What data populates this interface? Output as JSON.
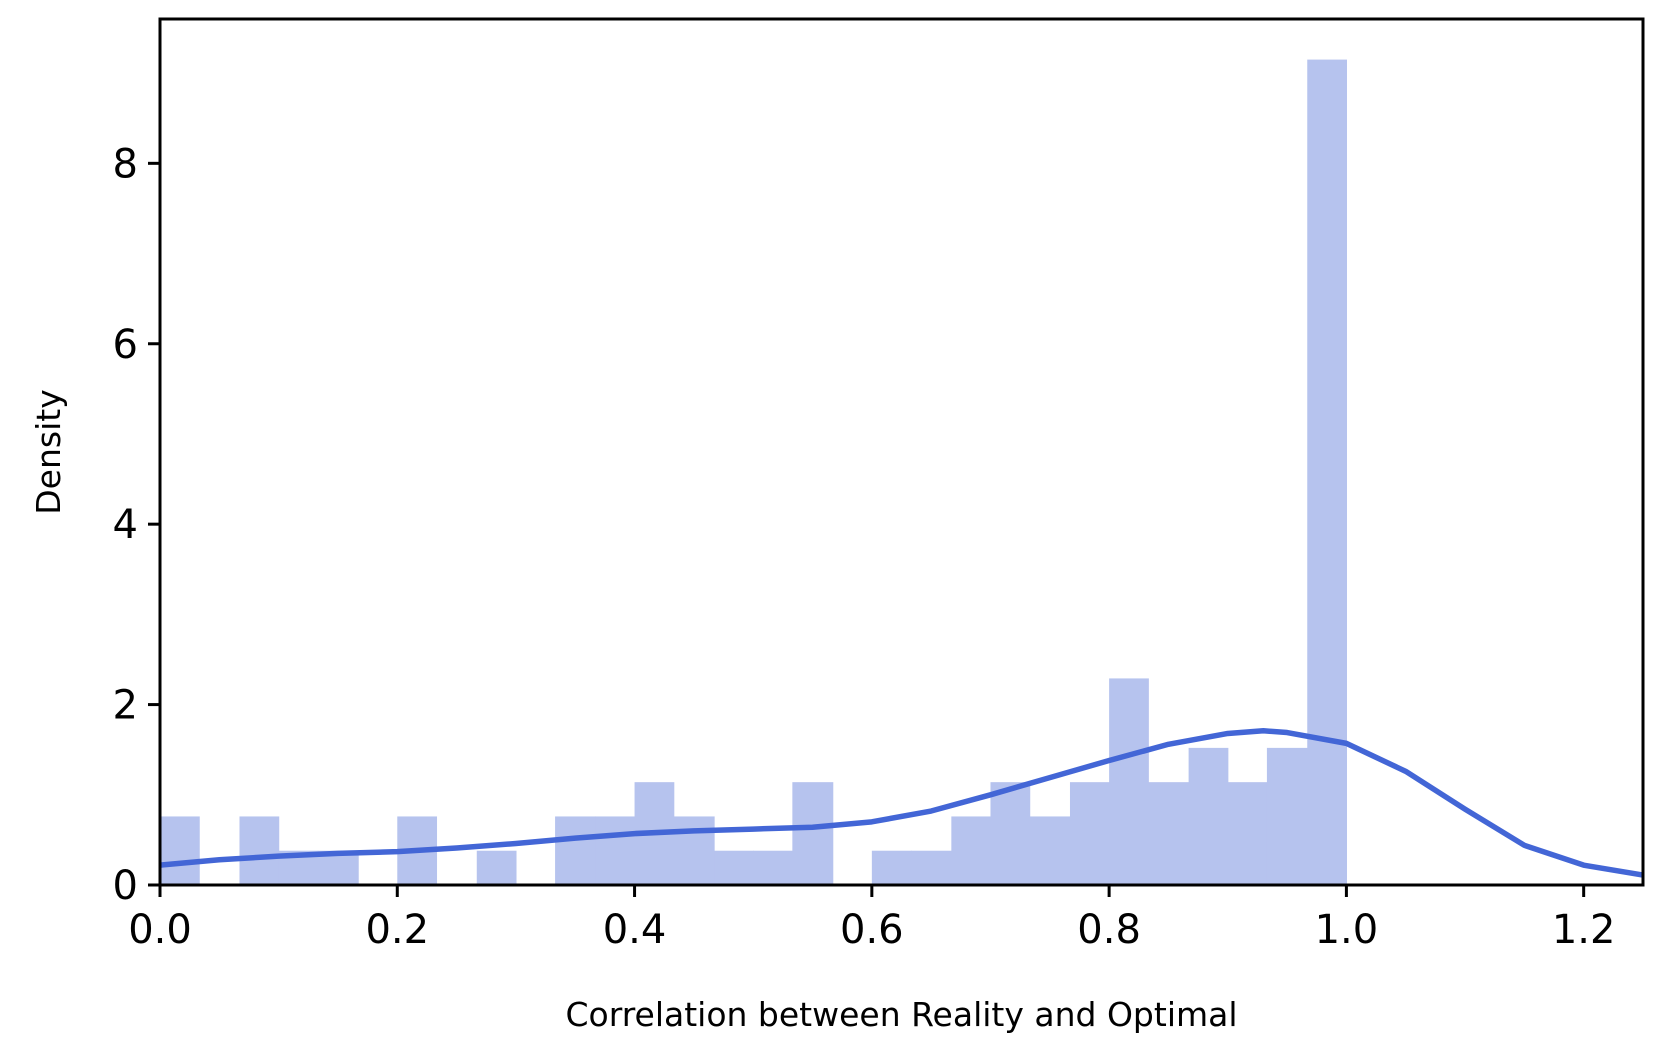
{
  "chart_data": {
    "type": "histogram",
    "xlabel": "Correlation between Reality and Optimal",
    "ylabel": "Density",
    "xlim": [
      0.0,
      1.25
    ],
    "ylim": [
      0,
      9.6
    ],
    "xticks": [
      "0.0",
      "0.2",
      "0.4",
      "0.6",
      "0.8",
      "1.0",
      "1.2"
    ],
    "yticks": [
      "0",
      "2",
      "4",
      "6",
      "8"
    ],
    "grid": false,
    "bin_width": 0.0333,
    "bins": [
      {
        "x0": 0.0,
        "x1": 0.033,
        "density": 0.76
      },
      {
        "x0": 0.033,
        "x1": 0.067,
        "density": 0.0
      },
      {
        "x0": 0.067,
        "x1": 0.1,
        "density": 0.76
      },
      {
        "x0": 0.1,
        "x1": 0.133,
        "density": 0.38
      },
      {
        "x0": 0.133,
        "x1": 0.167,
        "density": 0.38
      },
      {
        "x0": 0.167,
        "x1": 0.2,
        "density": 0.0
      },
      {
        "x0": 0.2,
        "x1": 0.233,
        "density": 0.76
      },
      {
        "x0": 0.233,
        "x1": 0.267,
        "density": 0.0
      },
      {
        "x0": 0.267,
        "x1": 0.3,
        "density": 0.38
      },
      {
        "x0": 0.3,
        "x1": 0.333,
        "density": 0.0
      },
      {
        "x0": 0.333,
        "x1": 0.367,
        "density": 0.76
      },
      {
        "x0": 0.367,
        "x1": 0.4,
        "density": 0.76
      },
      {
        "x0": 0.4,
        "x1": 0.433,
        "density": 1.14
      },
      {
        "x0": 0.433,
        "x1": 0.467,
        "density": 0.76
      },
      {
        "x0": 0.467,
        "x1": 0.5,
        "density": 0.38
      },
      {
        "x0": 0.5,
        "x1": 0.533,
        "density": 0.38
      },
      {
        "x0": 0.533,
        "x1": 0.567,
        "density": 1.14
      },
      {
        "x0": 0.567,
        "x1": 0.6,
        "density": 0.0
      },
      {
        "x0": 0.6,
        "x1": 0.633,
        "density": 0.38
      },
      {
        "x0": 0.633,
        "x1": 0.667,
        "density": 0.38
      },
      {
        "x0": 0.667,
        "x1": 0.7,
        "density": 0.76
      },
      {
        "x0": 0.7,
        "x1": 0.733,
        "density": 1.14
      },
      {
        "x0": 0.733,
        "x1": 0.767,
        "density": 0.76
      },
      {
        "x0": 0.767,
        "x1": 0.8,
        "density": 1.14
      },
      {
        "x0": 0.8,
        "x1": 0.833,
        "density": 2.29
      },
      {
        "x0": 0.833,
        "x1": 0.867,
        "density": 1.14
      },
      {
        "x0": 0.867,
        "x1": 0.9,
        "density": 1.52
      },
      {
        "x0": 0.9,
        "x1": 0.933,
        "density": 1.14
      },
      {
        "x0": 0.933,
        "x1": 0.967,
        "density": 1.52
      },
      {
        "x0": 0.967,
        "x1": 1.0,
        "density": 9.15
      }
    ],
    "kde": {
      "name": "",
      "x": [
        0.0,
        0.05,
        0.1,
        0.15,
        0.2,
        0.25,
        0.3,
        0.35,
        0.4,
        0.45,
        0.5,
        0.55,
        0.6,
        0.65,
        0.7,
        0.75,
        0.8,
        0.85,
        0.9,
        0.93,
        0.95,
        1.0,
        1.05,
        1.1,
        1.15,
        1.2,
        1.25
      ],
      "y": [
        0.22,
        0.28,
        0.32,
        0.35,
        0.37,
        0.41,
        0.46,
        0.52,
        0.57,
        0.6,
        0.62,
        0.64,
        0.7,
        0.82,
        1.0,
        1.19,
        1.38,
        1.56,
        1.68,
        1.71,
        1.69,
        1.57,
        1.26,
        0.84,
        0.44,
        0.22,
        0.11
      ]
    },
    "colors": {
      "bar_fill": "#b6c3ee",
      "kde_line": "#4366d6",
      "axes": "#000000"
    }
  }
}
